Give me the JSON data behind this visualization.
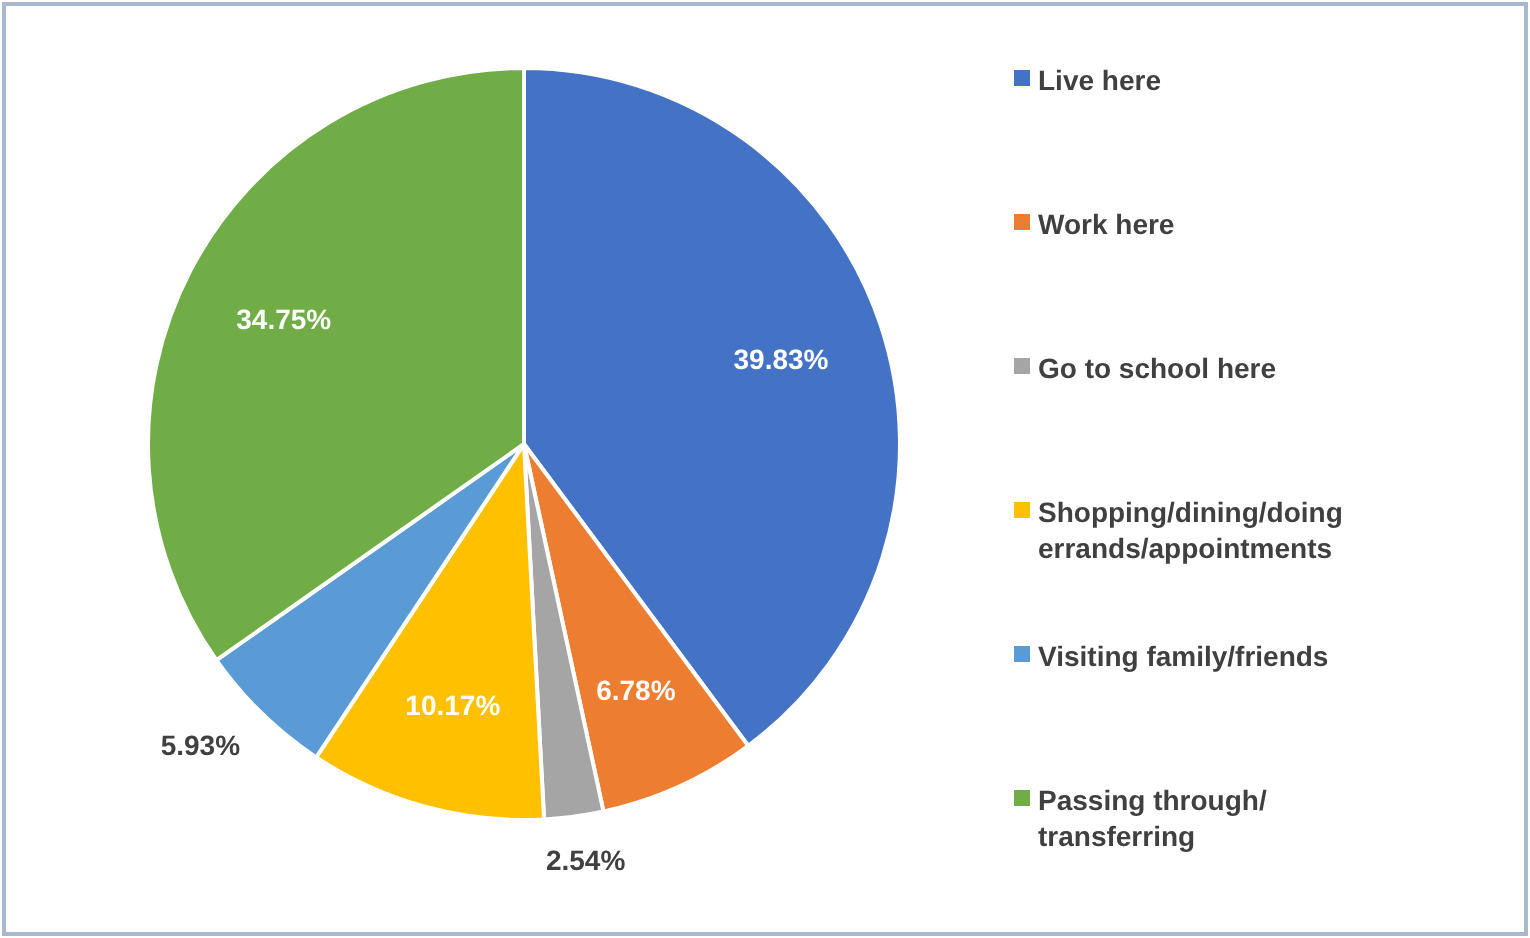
{
  "chart_data": {
    "type": "pie",
    "categories": [
      "Live here",
      "Work here",
      "Go to school here",
      "Shopping/dining/doing errands/appointments",
      "Visiting family/friends",
      "Passing through/transferring"
    ],
    "values": [
      39.83,
      6.78,
      2.54,
      10.17,
      5.93,
      34.75
    ],
    "colors": [
      "#4472c4",
      "#ed7d31",
      "#a5a5a5",
      "#ffc000",
      "#5b9bd5",
      "#70ad47"
    ],
    "value_labels": [
      "39.83%",
      "6.78%",
      "2.54%",
      "10.17%",
      "5.93%",
      "34.75%"
    ],
    "legend": "right"
  }
}
